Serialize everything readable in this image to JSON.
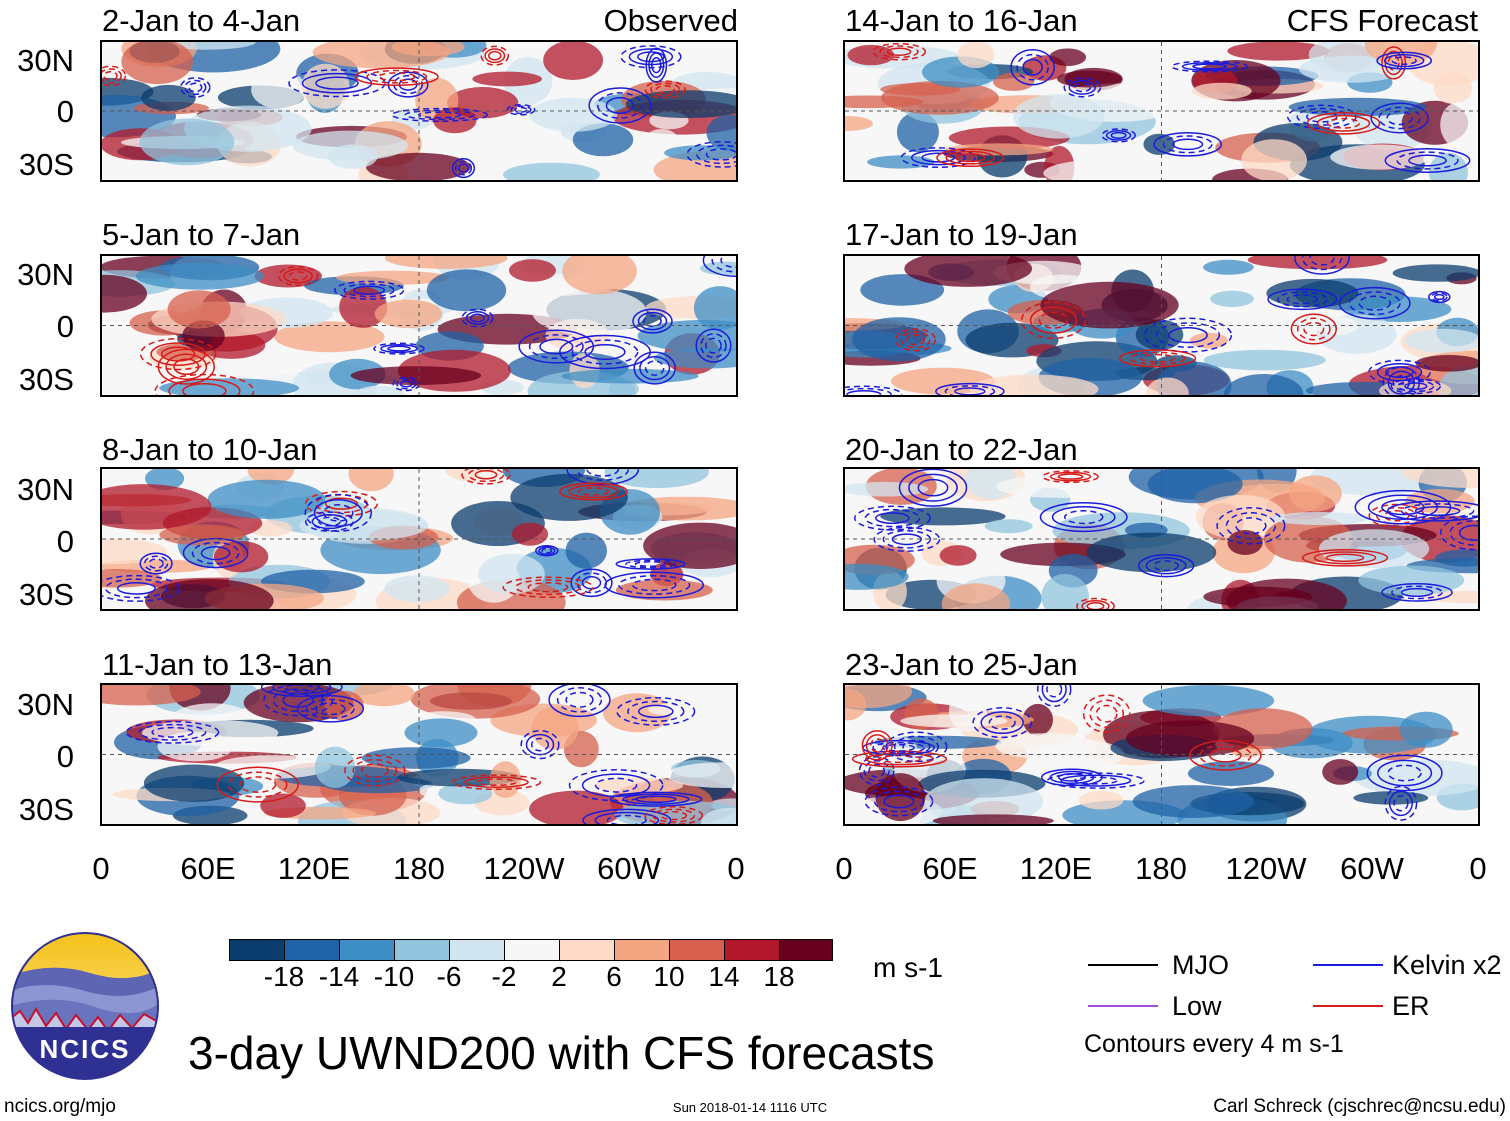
{
  "figure": {
    "main_title": "3-day UWND200 with CFS forecasts",
    "left_footer": "ncics.org/mjo",
    "center_footer": "Sun 2018-01-14 1116 UTC",
    "right_footer": "Carl Schreck (cjschrec@ncsu.edu)",
    "logo_text": "NCICS"
  },
  "columns": {
    "left_label": "Observed",
    "right_label": "CFS Forecast"
  },
  "panels_left": [
    {
      "title": "2-Jan to 4-Jan"
    },
    {
      "title": "5-Jan to 7-Jan"
    },
    {
      "title": "8-Jan to 10-Jan"
    },
    {
      "title": "11-Jan to 13-Jan"
    }
  ],
  "panels_right": [
    {
      "title": "14-Jan to 16-Jan"
    },
    {
      "title": "17-Jan to 19-Jan"
    },
    {
      "title": "20-Jan to 22-Jan"
    },
    {
      "title": "23-Jan to 25-Jan"
    }
  ],
  "axes": {
    "y_ticks": [
      "30N",
      "0",
      "30S"
    ],
    "x_ticks": [
      "0",
      "60E",
      "120E",
      "180",
      "120W",
      "60W",
      "0"
    ]
  },
  "colorbar": {
    "units": "m s-1",
    "tick_labels": [
      "-18",
      "-14",
      "-10",
      "-6",
      "-2",
      "2",
      "6",
      "10",
      "14",
      "18"
    ],
    "colors": [
      "#0b3c6e",
      "#1f62a5",
      "#3d8ec4",
      "#92c4de",
      "#d1e5f0",
      "#f7f7f7",
      "#fddbc7",
      "#f4a582",
      "#d6604d",
      "#b2182b",
      "#67001f"
    ]
  },
  "legend": {
    "mjo": {
      "label": "MJO",
      "color": "#000000"
    },
    "kelvin": {
      "label": "Kelvin x2",
      "color": "#1b1bdb"
    },
    "low": {
      "label": "Low",
      "color": "#a64fd6"
    },
    "er": {
      "label": "ER",
      "color": "#d61a1a"
    },
    "note": "Contours every 4 m s-1"
  }
}
